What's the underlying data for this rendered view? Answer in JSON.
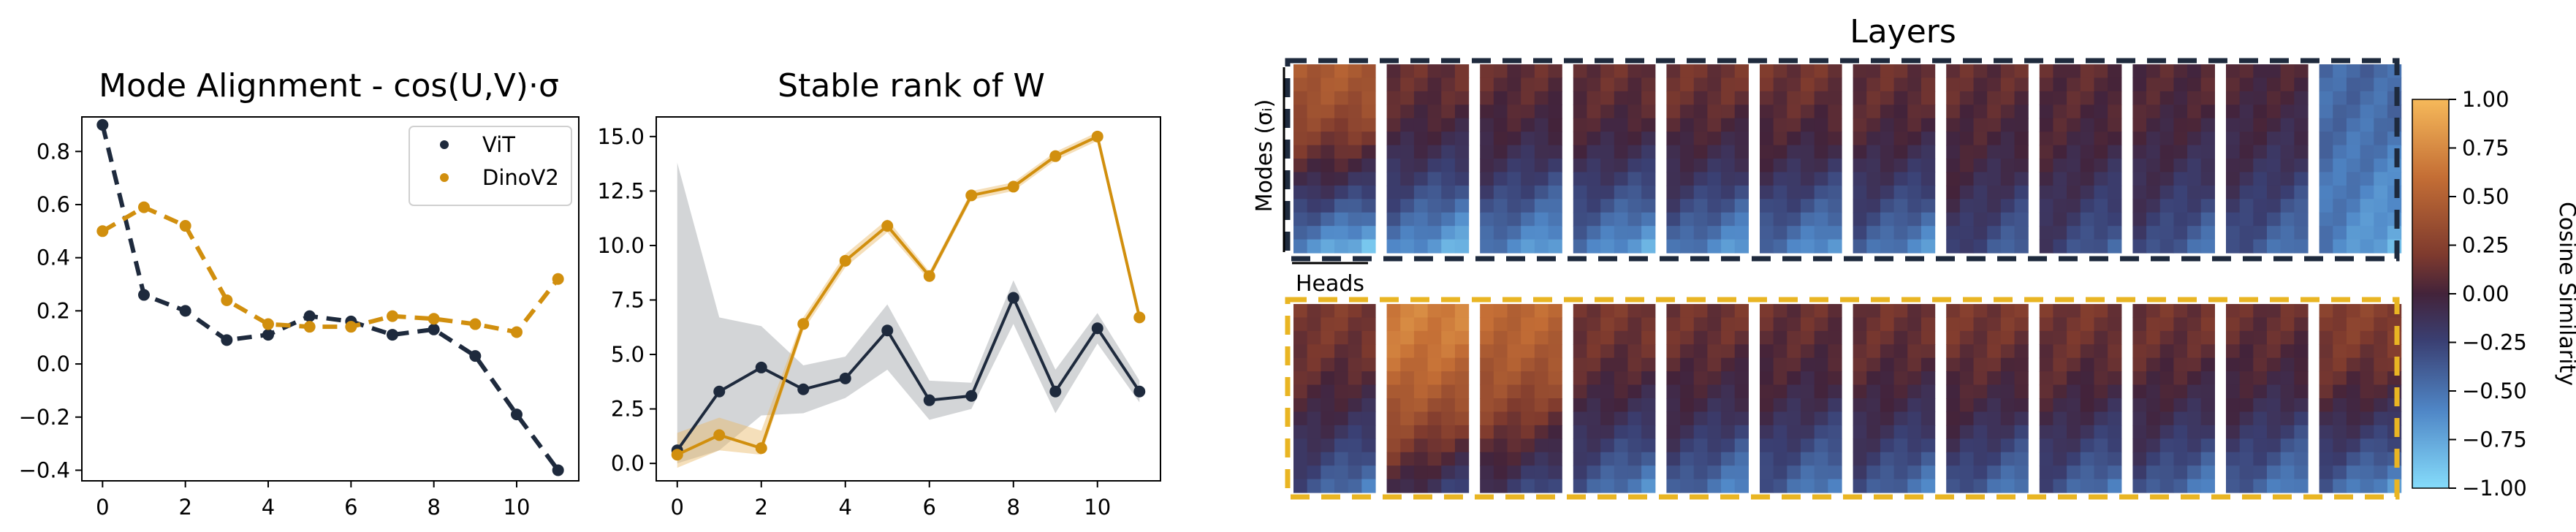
{
  "chart_data": [
    {
      "id": "mode_alignment",
      "type": "line",
      "title": "Mode Alignment - cos(U,V)·σ",
      "x": [
        0,
        1,
        2,
        3,
        4,
        5,
        6,
        7,
        8,
        9,
        10,
        11
      ],
      "x_ticks": [
        "0",
        "2",
        "4",
        "6",
        "8",
        "10"
      ],
      "y_ticks": [
        "−0.4",
        "−0.2",
        "0.0",
        "0.2",
        "0.4",
        "0.6",
        "0.8"
      ],
      "xlim": [
        -0.5,
        11.5
      ],
      "ylim": [
        -0.44,
        0.93
      ],
      "legend_position": "upper right",
      "series": [
        {
          "name": "ViT",
          "color": "#1e2a3d",
          "style": "dashed",
          "values": [
            0.9,
            0.26,
            0.2,
            0.09,
            0.11,
            0.18,
            0.16,
            0.11,
            0.13,
            0.03,
            -0.19,
            -0.4
          ]
        },
        {
          "name": "DinoV2",
          "color": "#d18f0e",
          "style": "dashed",
          "values": [
            0.5,
            0.59,
            0.52,
            0.24,
            0.15,
            0.14,
            0.14,
            0.18,
            0.17,
            0.15,
            0.12,
            0.32
          ]
        }
      ]
    },
    {
      "id": "stable_rank",
      "type": "line",
      "title": "Stable rank of  W",
      "x": [
        0,
        1,
        2,
        3,
        4,
        5,
        6,
        7,
        8,
        9,
        10,
        11
      ],
      "x_ticks": [
        "0",
        "2",
        "4",
        "6",
        "8",
        "10"
      ],
      "y_ticks": [
        "0.0",
        "2.5",
        "5.0",
        "7.5",
        "10.0",
        "12.5",
        "15.0"
      ],
      "xlim": [
        -0.5,
        11.5
      ],
      "ylim": [
        -0.8,
        15.9
      ],
      "series": [
        {
          "name": "ViT",
          "color": "#1e2a3d",
          "style": "solid",
          "values": [
            0.6,
            3.3,
            4.4,
            3.4,
            3.9,
            6.1,
            2.9,
            3.1,
            7.6,
            3.3,
            6.2,
            3.3
          ],
          "band_lower": [
            0.0,
            0.6,
            2.2,
            2.3,
            3.0,
            4.3,
            2.0,
            2.5,
            6.4,
            2.3,
            5.5,
            2.8
          ],
          "band_upper": [
            13.8,
            6.7,
            6.3,
            4.5,
            4.9,
            7.3,
            3.8,
            3.7,
            8.4,
            4.3,
            6.9,
            3.8
          ]
        },
        {
          "name": "DinoV2",
          "color": "#d18f0e",
          "style": "solid",
          "values": [
            0.4,
            1.3,
            0.7,
            6.4,
            9.3,
            10.9,
            8.6,
            12.3,
            12.7,
            14.1,
            15.0,
            6.7
          ],
          "band_lower": [
            -0.2,
            0.6,
            0.4,
            6.1,
            9.0,
            10.6,
            8.4,
            12.1,
            12.5,
            13.9,
            14.8,
            6.5
          ],
          "band_upper": [
            1.4,
            2.1,
            1.5,
            6.7,
            9.6,
            11.2,
            8.8,
            12.5,
            12.9,
            14.3,
            15.2,
            6.9
          ]
        }
      ]
    },
    {
      "id": "layer_heatmaps",
      "type": "heatmap",
      "title": "Layers",
      "y_label": "Modes (σᵢ)",
      "x_label": "Heads",
      "colorbar_label": "Cosine Similarity",
      "colorbar_ticks": [
        "1.00",
        "0.75",
        "0.50",
        "0.25",
        "0.00",
        "−0.25",
        "−0.50",
        "−0.75",
        "−1.00"
      ],
      "colorbar_range": [
        -1.0,
        1.0
      ],
      "rows": [
        {
          "model": "ViT",
          "border_color": "#1e2a3d",
          "base_values": [
            0.45,
            0.12,
            0.1,
            0.12,
            0.15,
            0.15,
            0.12,
            0.1,
            0.08,
            0.05,
            0.02,
            -0.45
          ],
          "bottom_values": [
            -0.6,
            -0.55,
            -0.5,
            -0.5,
            -0.45,
            -0.45,
            -0.4,
            -0.2,
            -0.2,
            -0.25,
            -0.3,
            -0.55
          ]
        },
        {
          "model": "DinoV2",
          "border_color": "#e9b523",
          "base_values": [
            0.2,
            0.7,
            0.55,
            0.18,
            0.15,
            0.12,
            0.14,
            0.18,
            0.17,
            0.15,
            0.12,
            0.25
          ],
          "bottom_values": [
            -0.3,
            0.0,
            -0.1,
            -0.35,
            -0.35,
            -0.35,
            -0.3,
            -0.3,
            -0.3,
            -0.3,
            -0.35,
            -0.4
          ]
        }
      ]
    }
  ]
}
